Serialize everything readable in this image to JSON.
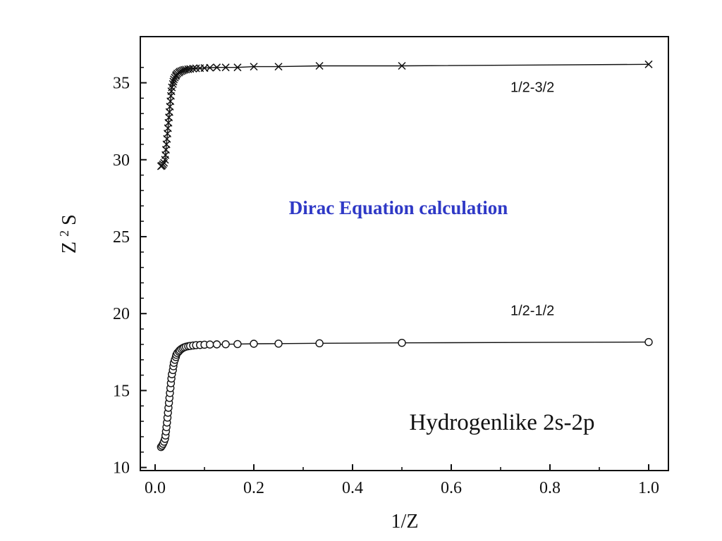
{
  "chart_data": {
    "type": "scatter",
    "xlabel": "1/Z",
    "ylabel_main": "Z",
    "ylabel_sup": "2",
    "ylabel_tail": "S",
    "xlim": [
      -0.03,
      1.04
    ],
    "ylim": [
      9.8,
      38.0
    ],
    "xticks": [
      0.0,
      0.2,
      0.4,
      0.6,
      0.8,
      1.0
    ],
    "xtick_labels": [
      "0.0",
      "0.2",
      "0.4",
      "0.6",
      "0.8",
      "1.0"
    ],
    "yticks": [
      10,
      15,
      20,
      25,
      30,
      35
    ],
    "ytick_labels": [
      "10",
      "15",
      "20",
      "25",
      "30",
      "35"
    ],
    "grid": false,
    "annotations": {
      "blue": "Dirac Equation calculation",
      "main": "Hydrogenlike 2s-2p"
    },
    "series": [
      {
        "name": "1/2-3/2",
        "marker": "x",
        "label_x": 0.72,
        "label_y": 34.4,
        "points": [
          [
            1.0,
            36.2
          ],
          [
            0.5,
            36.1
          ],
          [
            0.333,
            36.1
          ],
          [
            0.25,
            36.05
          ],
          [
            0.2,
            36.05
          ],
          [
            0.167,
            36.0
          ],
          [
            0.143,
            36.0
          ],
          [
            0.125,
            36.0
          ],
          [
            0.111,
            35.98
          ],
          [
            0.1,
            35.96
          ],
          [
            0.091,
            35.95
          ],
          [
            0.083,
            35.94
          ],
          [
            0.077,
            35.92
          ],
          [
            0.071,
            35.9
          ],
          [
            0.067,
            35.88
          ],
          [
            0.0625,
            35.86
          ],
          [
            0.059,
            35.84
          ],
          [
            0.056,
            35.8
          ],
          [
            0.053,
            35.76
          ],
          [
            0.05,
            35.72
          ],
          [
            0.048,
            35.66
          ],
          [
            0.045,
            35.6
          ],
          [
            0.043,
            35.52
          ],
          [
            0.042,
            35.44
          ],
          [
            0.04,
            35.34
          ],
          [
            0.038,
            35.22
          ],
          [
            0.037,
            35.08
          ],
          [
            0.036,
            34.92
          ],
          [
            0.034,
            34.7
          ],
          [
            0.033,
            34.45
          ],
          [
            0.032,
            34.15
          ],
          [
            0.031,
            33.8
          ],
          [
            0.03,
            33.45
          ],
          [
            0.029,
            33.1
          ],
          [
            0.028,
            32.75
          ],
          [
            0.027,
            32.4
          ],
          [
            0.026,
            32.05
          ],
          [
            0.025,
            31.7
          ],
          [
            0.024,
            31.35
          ],
          [
            0.023,
            31.0
          ],
          [
            0.022,
            30.65
          ],
          [
            0.021,
            30.3
          ],
          [
            0.02,
            30.0
          ],
          [
            0.018,
            29.8
          ],
          [
            0.016,
            29.7
          ],
          [
            0.014,
            29.62
          ],
          [
            0.012,
            29.58
          ]
        ]
      },
      {
        "name": "1/2-1/2",
        "marker": "o",
        "label_x": 0.72,
        "label_y": 19.9,
        "points": [
          [
            1.0,
            18.15
          ],
          [
            0.5,
            18.1
          ],
          [
            0.333,
            18.07
          ],
          [
            0.25,
            18.05
          ],
          [
            0.2,
            18.04
          ],
          [
            0.167,
            18.02
          ],
          [
            0.143,
            18.01
          ],
          [
            0.125,
            18.0
          ],
          [
            0.111,
            17.99
          ],
          [
            0.1,
            17.98
          ],
          [
            0.091,
            17.96
          ],
          [
            0.083,
            17.95
          ],
          [
            0.077,
            17.93
          ],
          [
            0.071,
            17.9
          ],
          [
            0.067,
            17.88
          ],
          [
            0.0625,
            17.85
          ],
          [
            0.059,
            17.81
          ],
          [
            0.056,
            17.76
          ],
          [
            0.053,
            17.7
          ],
          [
            0.05,
            17.62
          ],
          [
            0.048,
            17.54
          ],
          [
            0.045,
            17.44
          ],
          [
            0.043,
            17.32
          ],
          [
            0.042,
            17.18
          ],
          [
            0.04,
            17.0
          ],
          [
            0.038,
            16.8
          ],
          [
            0.037,
            16.58
          ],
          [
            0.036,
            16.33
          ],
          [
            0.034,
            16.06
          ],
          [
            0.033,
            15.78
          ],
          [
            0.032,
            15.48
          ],
          [
            0.031,
            15.16
          ],
          [
            0.03,
            14.84
          ],
          [
            0.029,
            14.52
          ],
          [
            0.028,
            14.2
          ],
          [
            0.027,
            13.88
          ],
          [
            0.026,
            13.56
          ],
          [
            0.025,
            13.24
          ],
          [
            0.024,
            12.92
          ],
          [
            0.023,
            12.62
          ],
          [
            0.022,
            12.34
          ],
          [
            0.021,
            12.08
          ],
          [
            0.02,
            11.86
          ],
          [
            0.018,
            11.68
          ],
          [
            0.016,
            11.54
          ],
          [
            0.014,
            11.42
          ],
          [
            0.012,
            11.33
          ]
        ]
      }
    ]
  }
}
